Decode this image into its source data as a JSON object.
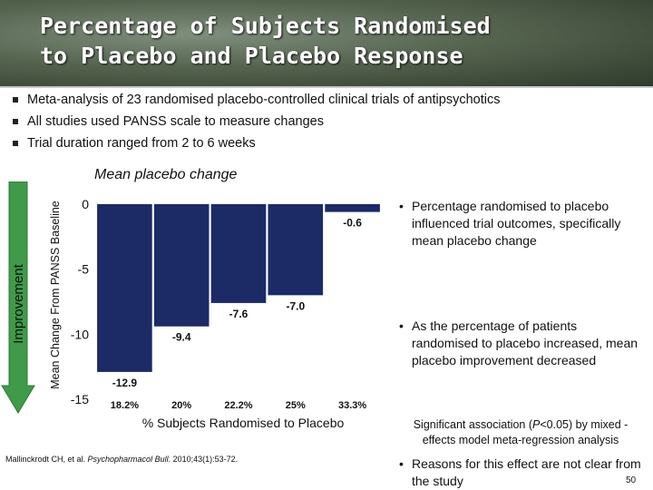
{
  "slide": {
    "title": "Percentage of Subjects Randomised\nto Placebo and Placebo Response",
    "bullets": [
      "Meta-analysis of 23 randomised placebo-controlled clinical trials of antipsychotics",
      "All studies used PANSS scale to measure changes",
      "Trial duration ranged from 2 to 6 weeks"
    ],
    "improvement_label": "Improvement",
    "right_bullets": [
      "Percentage randomised to placebo influenced trial outcomes, specifically mean placebo change",
      " As the percentage of patients randomised to placebo increased, mean placebo improvement decreased",
      "Reasons for this effect are not clear from the study"
    ],
    "association": {
      "prefix": "Significant association (",
      "p": "P",
      "suffix": "<0.05) by mixed -effects model meta-regression analysis"
    },
    "citation": {
      "authors": "Mallinckrodt CH, et al. ",
      "journal": "Psychopharmacol Bull",
      "rest": ". 2010;43(1):53-72."
    },
    "page_number": "50"
  },
  "colors": {
    "bar": "#1c2a66",
    "arrow": "#3f9a4a",
    "header": "#4e5d4a"
  },
  "chart_data": {
    "type": "bar",
    "title": "Mean placebo change",
    "xlabel": "% Subjects Randomised to Placebo",
    "ylabel": "Mean Change From PANSS Baseline",
    "categories": [
      "18.2%",
      "20%",
      "22.2%",
      "25%",
      "33.3%"
    ],
    "values": [
      -12.9,
      -9.4,
      -7.6,
      -7.0,
      -0.6
    ],
    "value_labels": [
      "-12.9",
      "-9.4",
      "-7.6",
      "-7.0",
      "-0.6"
    ],
    "ylim": [
      -15,
      0
    ],
    "yticks": [
      0,
      -5,
      -10,
      -15
    ],
    "ytick_labels": [
      "0",
      "-5",
      "-10",
      "-15"
    ],
    "grid": false
  }
}
